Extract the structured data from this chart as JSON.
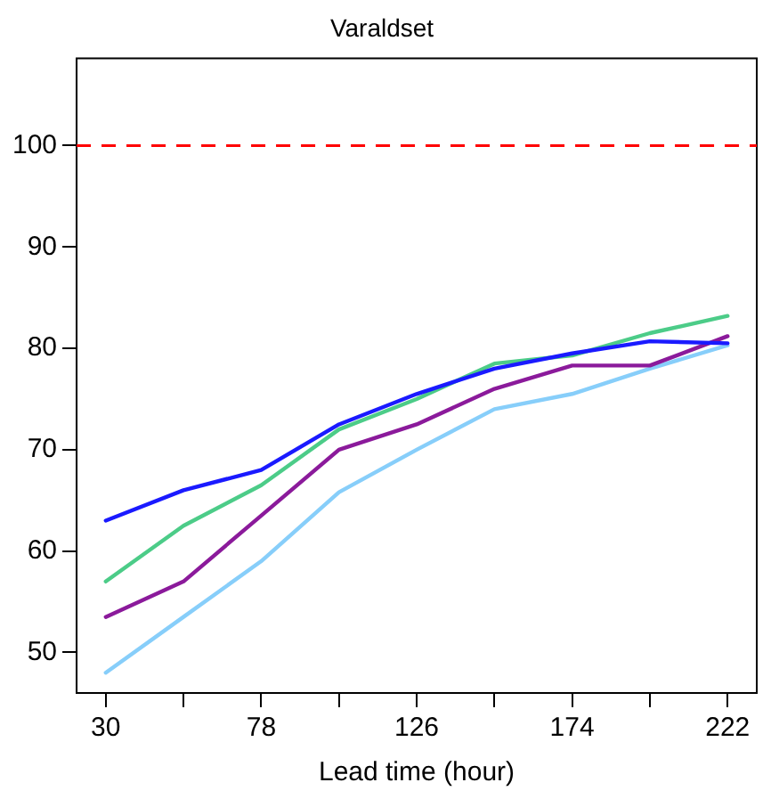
{
  "chart_data": {
    "type": "line",
    "title": "Varaldset",
    "xlabel": "Lead time (hour)",
    "x": [
      30,
      54,
      78,
      102,
      126,
      150,
      174,
      198,
      222
    ],
    "series": [
      {
        "color": "#1a1aff",
        "values": [
          63,
          66,
          68,
          72.5,
          75.5,
          78,
          79.5,
          80.7,
          80.5
        ]
      },
      {
        "color": "#4ccc88",
        "values": [
          57,
          62.5,
          66.5,
          72,
          75,
          78.5,
          79.3,
          81.5,
          83.2
        ]
      },
      {
        "color": "#8b1a9b",
        "values": [
          53.5,
          57,
          63.5,
          70,
          72.5,
          76,
          78.3,
          78.3,
          81.2
        ]
      },
      {
        "color": "#87cefa",
        "values": [
          48,
          53.5,
          59,
          65.8,
          70,
          74,
          75.5,
          78,
          80.3
        ]
      }
    ],
    "xlim": [
      21,
      231
    ],
    "ylim": [
      46,
      108.6
    ],
    "xticks": [
      30,
      {
        "value": 54,
        "label": null
      },
      78,
      {
        "value": 102,
        "label": null
      },
      126,
      {
        "value": 150,
        "label": null
      },
      174,
      {
        "value": 198,
        "label": null
      },
      222
    ],
    "yticks": [
      50,
      60,
      70,
      80,
      90,
      100
    ],
    "ref_lines": [
      {
        "axis": "y",
        "value": 100,
        "color": "#ff0000",
        "line_style": "dashed"
      }
    ],
    "grid": false,
    "legend": false,
    "marker": "none",
    "line_style": "solid"
  }
}
